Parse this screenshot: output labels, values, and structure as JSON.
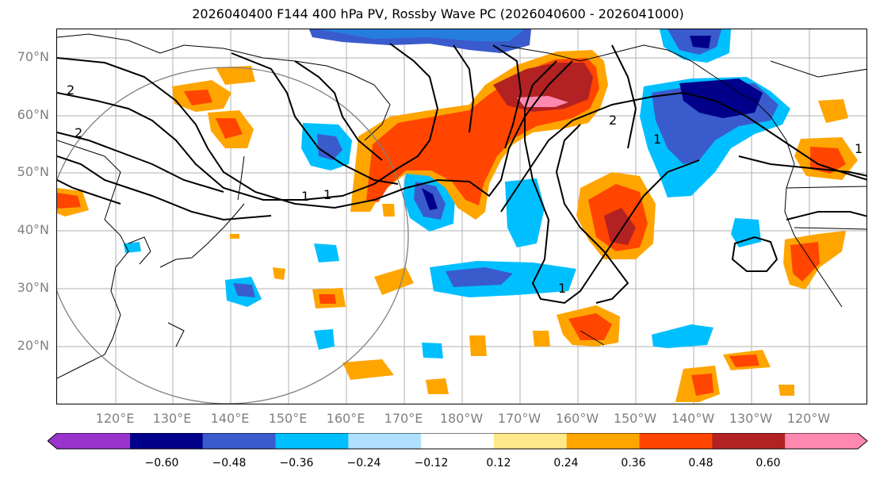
{
  "title": "2026040400 F144 400 hPa PV, Rossby Wave PC (2026040600 - 2026041000)",
  "lat_labels": [
    "70°N",
    "60°N",
    "50°N",
    "40°N",
    "30°N",
    "20°N"
  ],
  "lon_labels": [
    "120°E",
    "130°E",
    "140°E",
    "150°E",
    "160°E",
    "170°E",
    "180°W",
    "170°W",
    "160°W",
    "150°W",
    "140°W",
    "130°W",
    "120°W"
  ],
  "contour_labels": [
    "2",
    "2",
    "1",
    "1",
    "2",
    "1",
    "1",
    "1"
  ],
  "colorbar": {
    "ticks": [
      "−0.60",
      "−0.48",
      "−0.36",
      "−0.24",
      "−0.12",
      "0.12",
      "0.24",
      "0.36",
      "0.48",
      "0.60"
    ],
    "colors": [
      "#9933cc",
      "#00008b",
      "#3a5bcc",
      "#00bfff",
      "#b0e0ff",
      "#ffffff",
      "#ffe88a",
      "#ffa500",
      "#ff4500",
      "#b22222",
      "#ff88b0"
    ]
  },
  "palette": {
    "neg_strong": "#00008b",
    "neg_mid": "#3a5bcc",
    "neg_light": "#00bfff",
    "neg_faint": "#b0e0ff",
    "pos_faint": "#ffe88a",
    "pos_light": "#ffa500",
    "pos_mid": "#ff4500",
    "pos_strong": "#b22222",
    "pos_max": "#ff88b0"
  }
}
